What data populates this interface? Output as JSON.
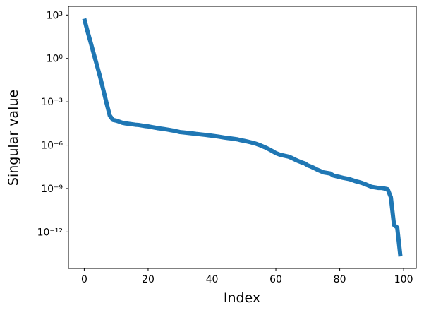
{
  "chart_data": {
    "type": "line",
    "x_label": "Index",
    "y_label": "Singular value",
    "log_y": true,
    "x": [
      0,
      1,
      2,
      3,
      4,
      5,
      6,
      7,
      8,
      9,
      10,
      11,
      12,
      13,
      14,
      15,
      16,
      17,
      18,
      19,
      20,
      21,
      22,
      23,
      24,
      25,
      26,
      27,
      28,
      29,
      30,
      31,
      32,
      33,
      34,
      35,
      36,
      37,
      38,
      39,
      40,
      41,
      42,
      43,
      44,
      45,
      46,
      47,
      48,
      49,
      50,
      51,
      52,
      53,
      54,
      55,
      56,
      57,
      58,
      59,
      60,
      61,
      62,
      63,
      64,
      65,
      66,
      67,
      68,
      69,
      70,
      71,
      72,
      73,
      74,
      75,
      76,
      77,
      78,
      79,
      80,
      81,
      82,
      83,
      84,
      85,
      86,
      87,
      88,
      89,
      90,
      91,
      92,
      93,
      94,
      95,
      96,
      97,
      98,
      99
    ],
    "series": [
      {
        "color": "#1f77b4",
        "values": [
          560,
          79,
          13,
          2,
          0.32,
          0.05,
          0.0063,
          0.00079,
          0.00011,
          5.6e-05,
          5e-05,
          4.2e-05,
          3.5e-05,
          3.2e-05,
          3e-05,
          2.8e-05,
          2.6e-05,
          2.5e-05,
          2.3e-05,
          2.1e-05,
          2e-05,
          1.8e-05,
          1.65e-05,
          1.5e-05,
          1.4e-05,
          1.3e-05,
          1.2e-05,
          1.1e-05,
          1e-05,
          9e-06,
          8e-06,
          7.6e-06,
          7.2e-06,
          6.8e-06,
          6.4e-06,
          6e-06,
          5.7e-06,
          5.4e-06,
          5.1e-06,
          4.8e-06,
          4.5e-06,
          4.2e-06,
          3.9e-06,
          3.6e-06,
          3.3e-06,
          3.1e-06,
          2.9e-06,
          2.7e-06,
          2.5e-06,
          2.2e-06,
          2e-06,
          1.8e-06,
          1.6e-06,
          1.4e-06,
          1.2e-06,
          1e-06,
          8e-07,
          6.5e-07,
          5e-07,
          3.8e-07,
          2.8e-07,
          2.3e-07,
          2e-07,
          1.8e-07,
          1.6e-07,
          1.3e-07,
          1e-07,
          8e-08,
          6.5e-08,
          5.5e-08,
          4e-08,
          3.3e-08,
          2.6e-08,
          2e-08,
          1.6e-08,
          1.3e-08,
          1.2e-08,
          1.1e-08,
          8e-09,
          7e-09,
          6.3e-09,
          5.5e-09,
          5e-09,
          4.5e-09,
          3.8e-09,
          3.2e-09,
          2.8e-09,
          2.4e-09,
          2e-09,
          1.6e-09,
          1.3e-09,
          1.2e-09,
          1.1e-09,
          1.1e-09,
          1e-09,
          9e-10,
          2.5e-10,
          3e-12,
          2e-12,
          2e-14
        ]
      }
    ],
    "xlim": [
      -4.95,
      103.95
    ],
    "xticks": [
      0,
      20,
      40,
      60,
      80,
      100
    ],
    "ylim": [
      3e-15,
      4000
    ],
    "yticks": [
      {
        "value": 1000,
        "label": "10³"
      },
      {
        "value": 1,
        "label": "10⁰"
      },
      {
        "value": 0.001,
        "label": "10⁻³"
      },
      {
        "value": 1e-06,
        "label": "10⁻⁶"
      },
      {
        "value": 1e-09,
        "label": "10⁻⁹"
      },
      {
        "value": 1e-12,
        "label": "10⁻¹²"
      }
    ]
  }
}
